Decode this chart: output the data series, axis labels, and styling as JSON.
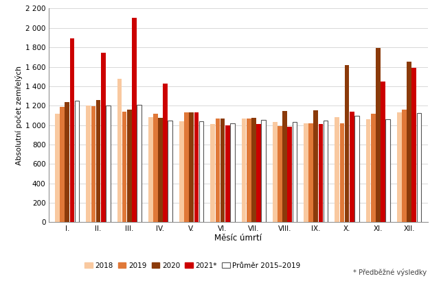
{
  "months": [
    "I.",
    "II.",
    "III.",
    "IV.",
    "V.",
    "VI.",
    "VII.",
    "VIII.",
    "IX.",
    "X.",
    "XI.",
    "XII."
  ],
  "series_2018": [
    1120,
    1200,
    1480,
    1080,
    1040,
    1010,
    1070,
    1030,
    1020,
    1080,
    1060,
    1130
  ],
  "series_2019": [
    1185,
    1195,
    1140,
    1120,
    1130,
    1065,
    1070,
    990,
    1020,
    1020,
    1120,
    1160
  ],
  "series_2020": [
    1240,
    1255,
    1160,
    1075,
    1130,
    1070,
    1075,
    1145,
    1155,
    1620,
    1795,
    1655
  ],
  "series_2021": [
    1895,
    1745,
    2105,
    1425,
    1130,
    1000,
    1010,
    985,
    1015,
    1140,
    1450,
    1590
  ],
  "series_avg": [
    1250,
    1200,
    1210,
    1050,
    1040,
    1020,
    1055,
    1035,
    1045,
    1095,
    1060,
    1125
  ],
  "color_2018": "#F9C9A0",
  "color_2019": "#E07838",
  "color_2020": "#8B3A0A",
  "color_2021": "#CC0000",
  "color_avg_fill": "#FFFFFF",
  "color_avg_edge": "#555555",
  "xlabel": "Měsíc úmrtí",
  "ylabel": "Absolutní počet zemřelých",
  "ylim": [
    0,
    2200
  ],
  "ytick_vals": [
    0,
    200,
    400,
    600,
    800,
    1000,
    1200,
    1400,
    1600,
    1800,
    2000,
    2200
  ],
  "ytick_labels": [
    "0",
    "200",
    "400",
    "600",
    "800",
    "1 000",
    "1 200",
    "1 400",
    "1 600",
    "1 800",
    "2 000",
    "2 200"
  ],
  "legend_labels": [
    "2018",
    "2019",
    "2020",
    "2021*",
    "Průměr 2015–2019"
  ],
  "footnote": "* Předběžné výsledky",
  "background_color": "#FFFFFF",
  "grid_color": "#C8C8C8"
}
